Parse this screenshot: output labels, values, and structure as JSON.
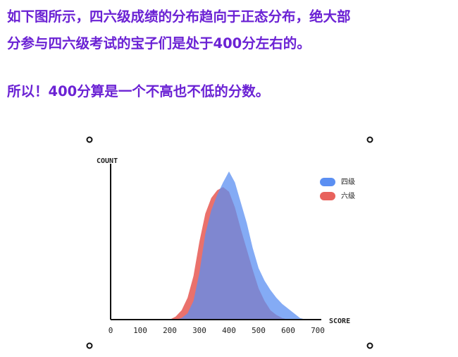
{
  "text_lines": [
    "如下图所示，四六级成绩的分布趋向于正态分布，绝大部",
    "分参与四六级考试的宝子们是处于400分左右的。",
    "所以！400分算是一个不高也不低的分数。"
  ],
  "chart_data": {
    "type": "area",
    "y_label": "COUNT",
    "x_label": "SCORE",
    "x": [
      200,
      220,
      240,
      260,
      280,
      300,
      320,
      340,
      360,
      380,
      400,
      420,
      440,
      460,
      480,
      500,
      520,
      540,
      560,
      580,
      600,
      620,
      640,
      660
    ],
    "series": [
      {
        "name": "四级",
        "color": "#5b8ff2",
        "values": [
          0,
          0,
          1,
          4,
          12,
          30,
          55,
          70,
          80,
          88,
          95,
          88,
          75,
          62,
          46,
          33,
          25,
          19,
          14,
          10,
          7,
          4,
          1,
          0
        ]
      },
      {
        "name": "六级",
        "color": "#e8625c",
        "values": [
          0,
          2,
          6,
          14,
          28,
          50,
          68,
          78,
          83,
          85,
          82,
          72,
          58,
          45,
          32,
          20,
          12,
          6,
          3,
          1,
          0,
          0,
          0,
          0
        ]
      }
    ],
    "xlim": [
      0,
      700
    ],
    "ylim": [
      0,
      100
    ],
    "xticks": [
      0,
      100,
      200,
      300,
      400,
      500,
      600,
      700
    ]
  }
}
